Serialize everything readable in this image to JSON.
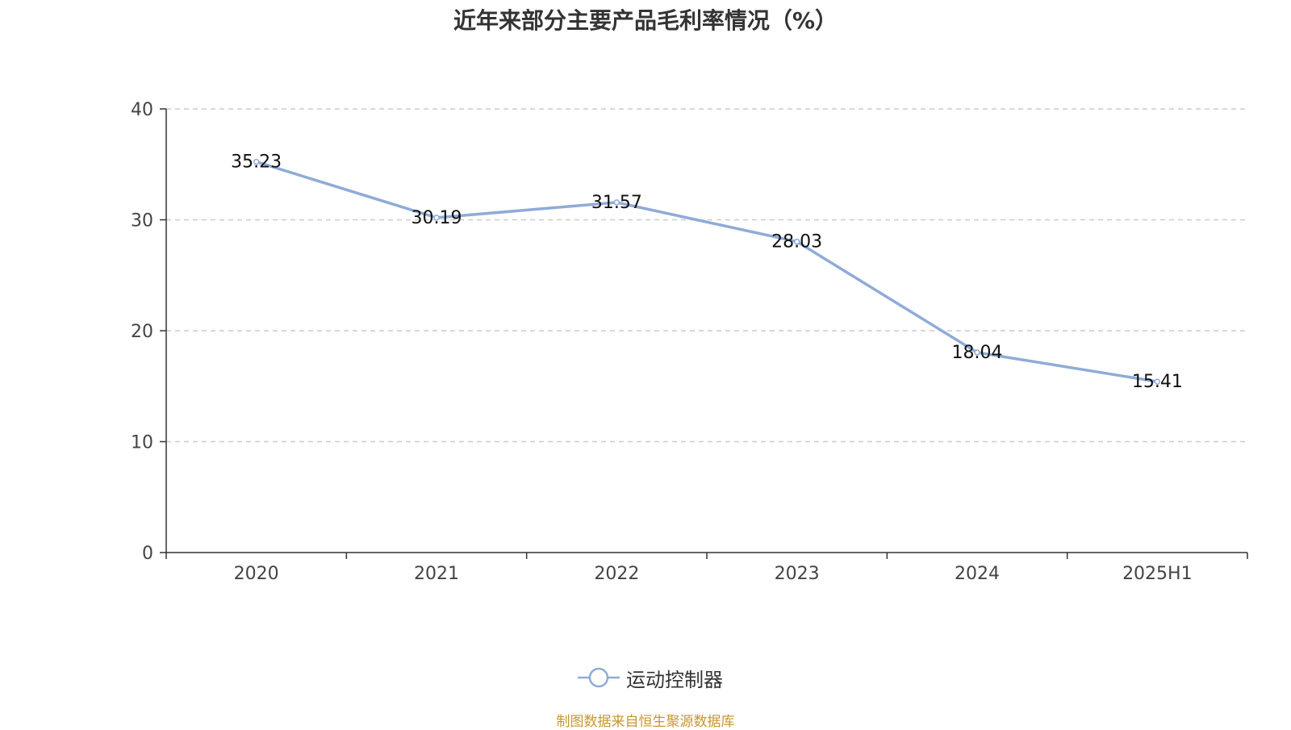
{
  "chart_data": {
    "type": "line",
    "title": "近年来部分主要产品毛利率情况（%）",
    "categories": [
      "2020",
      "2021",
      "2022",
      "2023",
      "2024",
      "2025H1"
    ],
    "series": [
      {
        "name": "运动控制器",
        "values": [
          35.23,
          30.19,
          31.57,
          28.03,
          18.04,
          15.41
        ],
        "color": "#8fabd8"
      }
    ],
    "ylim": [
      0,
      40
    ],
    "yticks": [
      0,
      10,
      20,
      30,
      40
    ],
    "grid": true,
    "legend_position": "bottom-center",
    "data_labels": [
      "35.23",
      "30.19",
      "31.57",
      "28.03",
      "18.04",
      "15.41"
    ]
  },
  "source_note": "制图数据来自恒生聚源数据库"
}
